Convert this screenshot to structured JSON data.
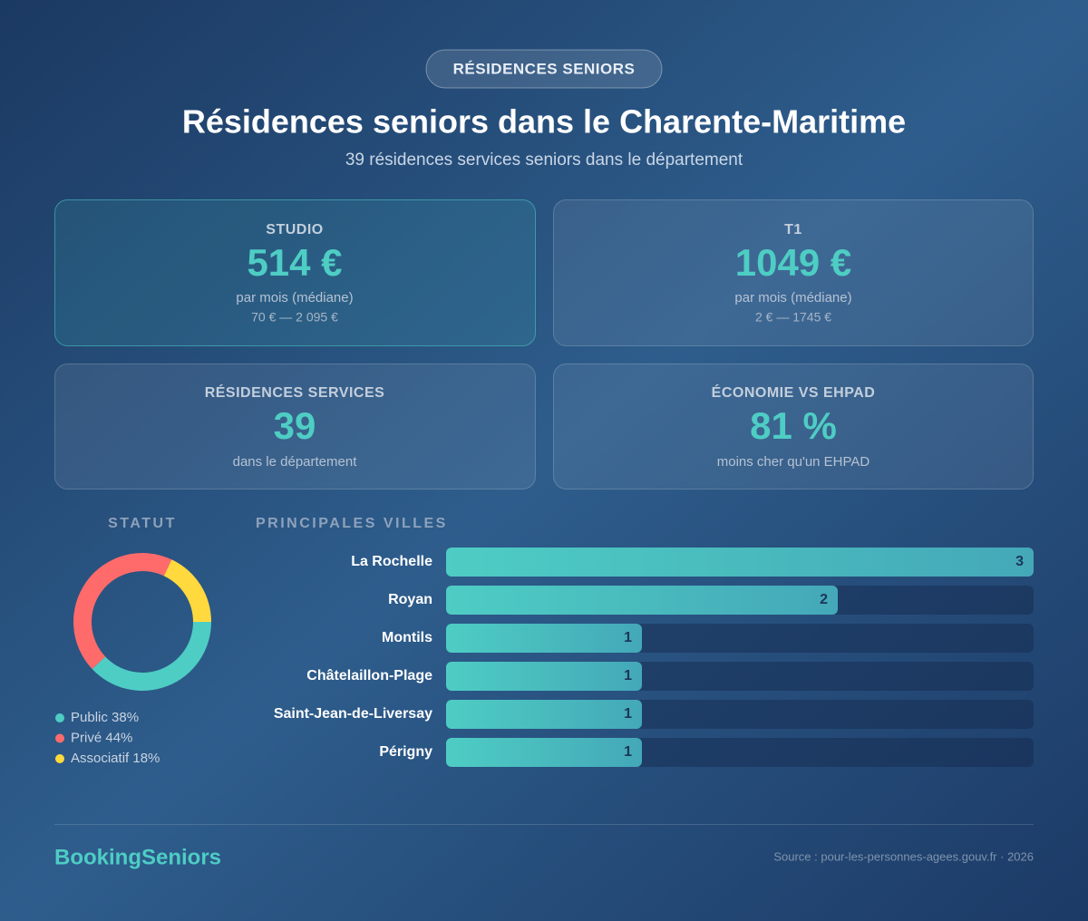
{
  "header": {
    "badge": "RÉSIDENCES SENIORS",
    "title": "Résidences seniors dans le Charente-Maritime",
    "subtitle": "39 résidences services seniors dans le département"
  },
  "cards": [
    {
      "label": "STUDIO",
      "value": "514 €",
      "note": "par mois (médiane)",
      "range": "70 € — 2 095 €"
    },
    {
      "label": "T1",
      "value": "1049 €",
      "note": "par mois (médiane)",
      "range": "2 € — 1745 €"
    },
    {
      "label": "RÉSIDENCES SERVICES",
      "value": "39",
      "note": "dans le département"
    },
    {
      "label": "ÉCONOMIE VS EHPAD",
      "value": "81 %",
      "note": "moins cher qu'un EHPAD"
    }
  ],
  "chart_data": [
    {
      "type": "pie",
      "title": "STATUT",
      "categories": [
        "Public",
        "Privé",
        "Associatif"
      ],
      "values": [
        38,
        44,
        18
      ],
      "value_labels": [
        "38%",
        "44%",
        "18%"
      ],
      "colors": [
        "#4ecdc4",
        "#ff6b6b",
        "#ffd93d"
      ]
    },
    {
      "type": "bar",
      "title": "PRINCIPALES VILLES",
      "categories": [
        "La Rochelle",
        "Royan",
        "Montils",
        "Châtelaillon-Plage",
        "Saint-Jean-de-Liversay",
        "Périgny"
      ],
      "values": [
        3,
        2,
        1,
        1,
        1,
        1
      ],
      "color": "#4ecdc4"
    }
  ],
  "footer": {
    "brand": "BookingSeniors",
    "source": "Source : pour-les-personnes-agees.gouv.fr · 2026"
  }
}
